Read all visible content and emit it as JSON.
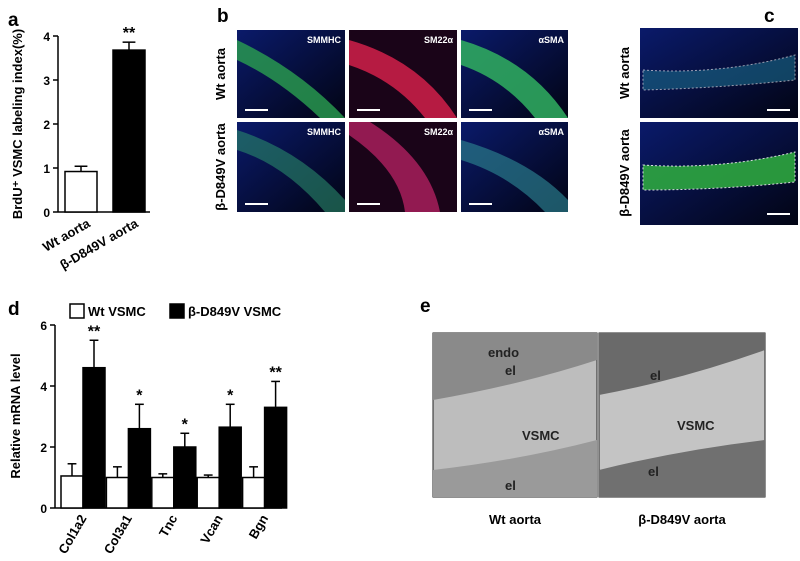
{
  "chart_data": [
    {
      "type": "bar",
      "panel": "a",
      "ylabel": "BrdU⁺ VSMC labeling index(%)",
      "categories": [
        "Wt aorta",
        "β-D849V aorta"
      ],
      "values": [
        0.92,
        3.68
      ],
      "errors": [
        0.12,
        0.18
      ],
      "colors": [
        "#ffffff",
        "#000000"
      ],
      "significance": [
        null,
        "**"
      ],
      "ylim": [
        0,
        4
      ],
      "yticks": [
        0,
        1,
        2,
        3,
        4
      ]
    },
    {
      "type": "grouped-bar",
      "panel": "d",
      "ylabel": "Relative mRNA level",
      "categories": [
        "Col1a2",
        "Col3a1",
        "Tnc",
        "Vcan",
        "Bgn"
      ],
      "series": [
        {
          "name": "Wt VSMC",
          "color": "#ffffff",
          "values": [
            1.05,
            1.0,
            1.0,
            1.0,
            1.0
          ],
          "errors": [
            0.4,
            0.35,
            0.12,
            0.08,
            0.35
          ]
        },
        {
          "name": "β-D849V VSMC",
          "color": "#000000",
          "values": [
            4.6,
            2.6,
            2.0,
            2.65,
            3.3
          ],
          "errors": [
            0.9,
            0.8,
            0.45,
            0.75,
            0.85
          ],
          "significance": [
            "**",
            "*",
            "*",
            "*",
            "**"
          ]
        }
      ],
      "ylim": [
        0,
        6
      ],
      "yticks": [
        0,
        2,
        4,
        6
      ],
      "legend": "top"
    }
  ],
  "panel_b": {
    "label": "b",
    "row_labels": [
      "Wt aorta",
      "β-D849V aorta"
    ],
    "column_labels": [
      "SMMHC",
      "SM22α",
      "αSMA"
    ]
  },
  "panel_c": {
    "label": "c",
    "row_labels": [
      "Wt aorta",
      "β-D849V aorta"
    ]
  },
  "panel_e": {
    "label": "e",
    "captions": [
      "Wt aorta",
      "β-D849V aorta"
    ],
    "left_annotations": [
      "endo",
      "el",
      "VSMC",
      "el"
    ],
    "right_annotations": [
      "el",
      "VSMC",
      "el"
    ]
  }
}
